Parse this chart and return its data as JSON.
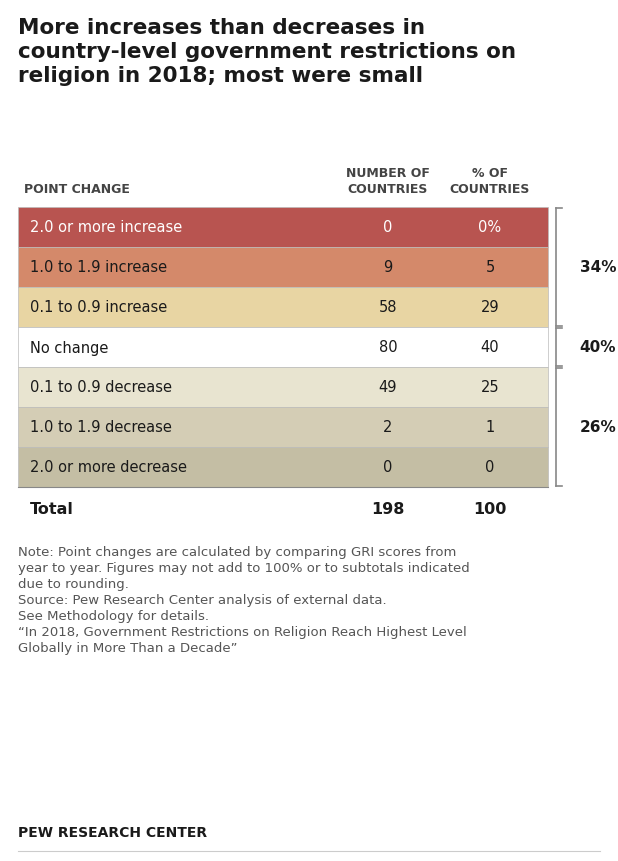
{
  "title": "More increases than decreases in\ncountry-level government restrictions on\nreligion in 2018; most were small",
  "col_header_1": "POINT CHANGE",
  "col_header_2": "NUMBER OF\nCOUNTRIES",
  "col_header_3": "% OF\nCOUNTRIES",
  "rows": [
    {
      "label": "2.0 or more increase",
      "num": "0",
      "pct": "0%",
      "bg": "#b85450"
    },
    {
      "label": "1.0 to 1.9 increase",
      "num": "9",
      "pct": "5",
      "bg": "#d4896a"
    },
    {
      "label": "0.1 to 0.9 increase",
      "num": "58",
      "pct": "29",
      "bg": "#e8d5a3"
    },
    {
      "label": "No change",
      "num": "80",
      "pct": "40",
      "bg": "#ffffff"
    },
    {
      "label": "0.1 to 0.9 decrease",
      "num": "49",
      "pct": "25",
      "bg": "#e8e4d0"
    },
    {
      "label": "1.0 to 1.9 decrease",
      "num": "2",
      "pct": "1",
      "bg": "#d4cdb5"
    },
    {
      "label": "2.0 or more decrease",
      "num": "0",
      "pct": "0",
      "bg": "#c4bea4"
    }
  ],
  "total_label": "Total",
  "total_num": "198",
  "total_pct": "100",
  "brackets": [
    {
      "label": "34%",
      "rows": [
        0,
        1,
        2
      ]
    },
    {
      "label": "40%",
      "rows": [
        3,
        3
      ]
    },
    {
      "label": "26%",
      "rows": [
        4,
        5,
        6
      ]
    }
  ],
  "note_lines": [
    "Note: Point changes are calculated by comparing GRI scores from",
    "year to year. Figures may not add to 100% or to subtotals indicated",
    "due to rounding.",
    "Source: Pew Research Center analysis of external data.",
    "See Methodology for details.",
    "“In 2018, Government Restrictions on Religion Reach Highest Level",
    "Globally in More Than a Decade”"
  ],
  "footer": "PEW RESEARCH CENTER",
  "bg_color": "#ffffff",
  "title_fontsize": 15.5,
  "row_fontsize": 10.5,
  "header_fontsize": 9,
  "note_fontsize": 9.5,
  "footer_fontsize": 10
}
